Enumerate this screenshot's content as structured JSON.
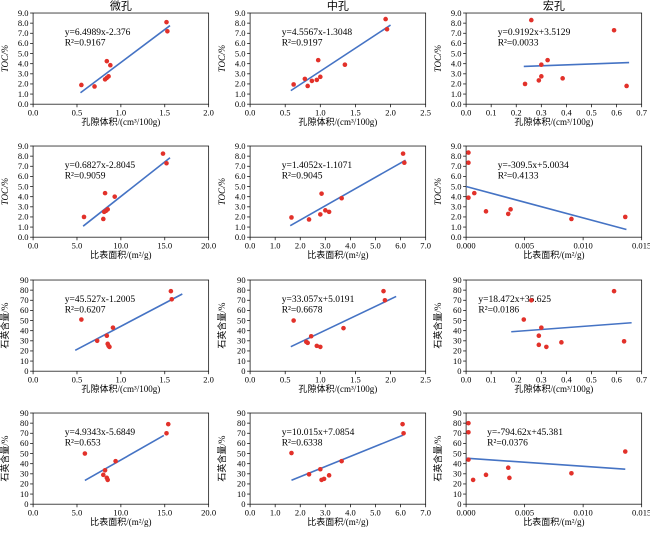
{
  "figure_title": "",
  "colors": {
    "point": "#e2312a",
    "trendline": "#4573c4",
    "axis": "#1a1a1a",
    "text": "#000000"
  },
  "column_titles": [
    "微孔",
    "中孔",
    "宏孔"
  ],
  "chart_data": [
    {
      "type": "scatter",
      "title": "微孔",
      "xlabel": "孔隙体积/(cm³/100g)",
      "ylabel": "TOC/%",
      "ylabel_italic": true,
      "xlim": [
        0,
        2.0
      ],
      "ylim": [
        0,
        9.0
      ],
      "xticks": [
        0,
        0.5,
        1.0,
        1.5,
        2.0
      ],
      "xtick_labels": [
        "0.0",
        "0.5",
        "1.0",
        "1.5",
        "2.0"
      ],
      "yticks": [
        0,
        1,
        2,
        3,
        4,
        5,
        6,
        7,
        8,
        9
      ],
      "ytick_labels": [
        "0.0",
        "1.0",
        "2.0",
        "3.0",
        "4.0",
        "5.0",
        "6.0",
        "7.0",
        "8.0",
        "9.0"
      ],
      "equation": "y=6.4989x-2.376",
      "r2": "R²=0.9167",
      "fit": {
        "slope": 6.4989,
        "intercept": -2.376,
        "x_range": [
          0.54,
          1.56
        ]
      },
      "eq_x": 0.18,
      "points": [
        [
          0.55,
          1.9
        ],
        [
          0.7,
          1.75
        ],
        [
          0.82,
          2.45
        ],
        [
          0.84,
          2.6
        ],
        [
          0.86,
          2.75
        ],
        [
          0.84,
          4.25
        ],
        [
          0.88,
          3.85
        ],
        [
          1.52,
          8.1
        ],
        [
          1.53,
          7.2
        ]
      ]
    },
    {
      "type": "scatter",
      "title": "中孔",
      "xlabel": "孔隙体积/(cm³/100g)",
      "ylabel": "TOC/%",
      "ylabel_italic": true,
      "xlim": [
        0,
        2.5
      ],
      "ylim": [
        0,
        9.0
      ],
      "xticks": [
        0,
        0.5,
        1.0,
        1.5,
        2.0,
        2.5
      ],
      "xtick_labels": [
        "0.0",
        "0.5",
        "1.0",
        "1.5",
        "2.0",
        "2.5"
      ],
      "yticks": [
        0,
        1,
        2,
        3,
        4,
        5,
        6,
        7,
        8,
        9
      ],
      "ytick_labels": [
        "0.0",
        "1.0",
        "2.0",
        "3.0",
        "4.0",
        "5.0",
        "6.0",
        "7.0",
        "8.0",
        "9.0"
      ],
      "equation": "y=4.5567x-1.3048",
      "r2": "R²=0.9197",
      "fit": {
        "slope": 4.5567,
        "intercept": -1.3048,
        "x_range": [
          0.58,
          2.0
        ]
      },
      "eq_x": 0.18,
      "points": [
        [
          0.62,
          1.95
        ],
        [
          0.78,
          2.5
        ],
        [
          0.82,
          1.8
        ],
        [
          0.88,
          2.3
        ],
        [
          0.95,
          2.4
        ],
        [
          1.0,
          2.7
        ],
        [
          0.97,
          4.35
        ],
        [
          1.35,
          3.9
        ],
        [
          1.93,
          8.4
        ],
        [
          1.95,
          7.4
        ]
      ]
    },
    {
      "type": "scatter",
      "title": "宏孔",
      "xlabel": "孔隙体积/(cm³/100g)",
      "ylabel": "TOC/%",
      "ylabel_italic": true,
      "xlim": [
        0,
        0.7
      ],
      "ylim": [
        0,
        9.0
      ],
      "xticks": [
        0,
        0.1,
        0.2,
        0.3,
        0.4,
        0.5,
        0.6,
        0.7
      ],
      "xtick_labels": [
        "0.0",
        "0.1",
        "0.2",
        "0.3",
        "0.4",
        "0.5",
        "0.6",
        "0.7"
      ],
      "yticks": [
        0,
        1,
        2,
        3,
        4,
        5,
        6,
        7,
        8,
        9
      ],
      "ytick_labels": [
        "0.0",
        "1.0",
        "2.0",
        "3.0",
        "4.0",
        "5.0",
        "6.0",
        "7.0",
        "8.0",
        "9.0"
      ],
      "equation": "y=0.9192x+3.5129",
      "r2": "R²=0.0033",
      "fit": {
        "slope": 0.9192,
        "intercept": 3.5129,
        "x_range": [
          0.23,
          0.65
        ]
      },
      "eq_x": 0.18,
      "points": [
        [
          0.235,
          2.0
        ],
        [
          0.26,
          8.3
        ],
        [
          0.29,
          2.35
        ],
        [
          0.3,
          2.75
        ],
        [
          0.3,
          3.9
        ],
        [
          0.325,
          4.35
        ],
        [
          0.385,
          2.55
        ],
        [
          0.59,
          7.3
        ],
        [
          0.64,
          1.8
        ]
      ]
    },
    {
      "type": "scatter",
      "title": "",
      "xlabel": "比表面积/(m²/g)",
      "ylabel": "TOC/%",
      "ylabel_italic": true,
      "xlim": [
        0,
        20.0
      ],
      "ylim": [
        0,
        9.0
      ],
      "xticks": [
        0,
        5,
        10,
        15,
        20
      ],
      "xtick_labels": [
        "0.0",
        "5.0",
        "10.0",
        "15.0",
        "20.0"
      ],
      "yticks": [
        0,
        1,
        2,
        3,
        4,
        5,
        6,
        7,
        8,
        9
      ],
      "ytick_labels": [
        "0.0",
        "1.0",
        "2.0",
        "3.0",
        "4.0",
        "5.0",
        "6.0",
        "7.0",
        "8.0",
        "9.0"
      ],
      "equation": "y=0.6827x-2.8045",
      "r2": "R²=0.9059",
      "fit": {
        "slope": 0.6827,
        "intercept": -2.8045,
        "x_range": [
          5.7,
          15.6
        ]
      },
      "eq_x": 0.18,
      "points": [
        [
          5.8,
          2.0
        ],
        [
          8.0,
          1.8
        ],
        [
          8.1,
          2.5
        ],
        [
          8.3,
          2.6
        ],
        [
          8.5,
          2.75
        ],
        [
          8.2,
          4.35
        ],
        [
          9.3,
          4.0
        ],
        [
          14.8,
          8.25
        ],
        [
          15.2,
          7.3
        ]
      ]
    },
    {
      "type": "scatter",
      "title": "",
      "xlabel": "比表面积/(m²/g)",
      "ylabel": "TOC/%",
      "ylabel_italic": true,
      "xlim": [
        0,
        7.0
      ],
      "ylim": [
        0,
        9.0
      ],
      "xticks": [
        0,
        1,
        2,
        3,
        4,
        5,
        6,
        7
      ],
      "xtick_labels": [
        "0.0",
        "1.0",
        "2.0",
        "3.0",
        "4.0",
        "5.0",
        "6.0",
        "7.0"
      ],
      "yticks": [
        0,
        1,
        2,
        3,
        4,
        5,
        6,
        7,
        8,
        9
      ],
      "ytick_labels": [
        "0.0",
        "1.0",
        "2.0",
        "3.0",
        "4.0",
        "5.0",
        "6.0",
        "7.0",
        "8.0",
        "9.0"
      ],
      "equation": "y=1.4052x-1.1071",
      "r2": "R²=0.9045",
      "fit": {
        "slope": 1.4052,
        "intercept": -1.1071,
        "x_range": [
          1.6,
          6.2
        ]
      },
      "eq_x": 0.18,
      "points": [
        [
          1.65,
          1.95
        ],
        [
          2.35,
          1.75
        ],
        [
          2.8,
          2.25
        ],
        [
          2.85,
          4.3
        ],
        [
          3.0,
          2.65
        ],
        [
          3.15,
          2.5
        ],
        [
          3.65,
          3.85
        ],
        [
          6.1,
          8.25
        ],
        [
          6.15,
          7.35
        ]
      ]
    },
    {
      "type": "scatter",
      "title": "",
      "xlabel": "比表面积/(m²/g)",
      "ylabel": "TOC/%",
      "ylabel_italic": true,
      "xlim": [
        0,
        0.015
      ],
      "ylim": [
        0,
        9.0
      ],
      "xticks": [
        0,
        0.005,
        0.01,
        0.015
      ],
      "xtick_labels": [
        "0.000",
        "0.005",
        "0.010",
        "0.015"
      ],
      "yticks": [
        0,
        1,
        2,
        3,
        4,
        5,
        6,
        7,
        8,
        9
      ],
      "ytick_labels": [
        "0.0",
        "1.0",
        "2.0",
        "3.0",
        "4.0",
        "5.0",
        "6.0",
        "7.0",
        "8.0",
        "9.0"
      ],
      "equation": "y=-309.5x+5.0034",
      "r2": "R²=0.4133",
      "fit": {
        "slope": -309.5,
        "intercept": 5.0034,
        "x_range": [
          0,
          0.0137
        ]
      },
      "eq_x": 0.18,
      "points": [
        [
          0.0002,
          8.35
        ],
        [
          0.0002,
          7.35
        ],
        [
          0.0002,
          3.9
        ],
        [
          0.0007,
          4.35
        ],
        [
          0.0017,
          2.55
        ],
        [
          0.0036,
          2.3
        ],
        [
          0.0038,
          2.75
        ],
        [
          0.009,
          1.8
        ],
        [
          0.0136,
          2.0
        ]
      ]
    },
    {
      "type": "scatter",
      "title": "",
      "xlabel": "孔隙体积/(cm³/100g)",
      "ylabel": "石英含量/%",
      "ylabel_italic": false,
      "xlim": [
        0,
        2.0
      ],
      "ylim": [
        0,
        90
      ],
      "xticks": [
        0,
        0.5,
        1.0,
        1.5,
        2.0
      ],
      "xtick_labels": [
        "0.0",
        "0.5",
        "1.0",
        "1.5",
        "2.0"
      ],
      "yticks": [
        0,
        10,
        20,
        30,
        40,
        50,
        60,
        70,
        80,
        90
      ],
      "ytick_labels": [
        "0",
        "10",
        "20",
        "30",
        "40",
        "50",
        "60",
        "70",
        "80",
        "90"
      ],
      "equation": "y=45.527x-1.2005",
      "r2": "R²=0.6207",
      "fit": {
        "slope": 45.527,
        "intercept": -1.2005,
        "x_range": [
          0.48,
          1.7
        ]
      },
      "eq_x": 0.18,
      "points": [
        [
          0.55,
          51
        ],
        [
          0.73,
          30
        ],
        [
          0.84,
          35
        ],
        [
          0.85,
          27
        ],
        [
          0.86,
          25
        ],
        [
          0.87,
          24
        ],
        [
          0.91,
          43
        ],
        [
          1.57,
          79
        ],
        [
          1.58,
          71
        ]
      ]
    },
    {
      "type": "scatter",
      "title": "",
      "xlabel": "孔隙体积/(cm³/100g)",
      "ylabel": "石英含量/%",
      "ylabel_italic": false,
      "xlim": [
        0,
        2.5
      ],
      "ylim": [
        0,
        90
      ],
      "xticks": [
        0,
        0.5,
        1.0,
        1.5,
        2.0,
        2.5
      ],
      "xtick_labels": [
        "0.0",
        "0.5",
        "1.0",
        "1.5",
        "2.0",
        "2.5"
      ],
      "yticks": [
        0,
        10,
        20,
        30,
        40,
        50,
        60,
        70,
        80,
        90
      ],
      "ytick_labels": [
        "0",
        "10",
        "20",
        "30",
        "40",
        "50",
        "60",
        "70",
        "80",
        "90"
      ],
      "equation": "y=33.057x+5.0191",
      "r2": "R²=0.6678",
      "fit": {
        "slope": 33.057,
        "intercept": 5.0191,
        "x_range": [
          0.58,
          2.08
        ]
      },
      "eq_x": 0.18,
      "points": [
        [
          0.62,
          50
        ],
        [
          0.8,
          29
        ],
        [
          0.82,
          28
        ],
        [
          0.87,
          34.5
        ],
        [
          0.95,
          25
        ],
        [
          1.0,
          24
        ],
        [
          1.33,
          42.5
        ],
        [
          1.9,
          79
        ],
        [
          1.92,
          70
        ]
      ]
    },
    {
      "type": "scatter",
      "title": "",
      "xlabel": "孔隙体积/(cm³/100g)",
      "ylabel": "石英含量/%",
      "ylabel_italic": false,
      "xlim": [
        0,
        0.7
      ],
      "ylim": [
        0,
        90
      ],
      "xticks": [
        0,
        0.1,
        0.2,
        0.3,
        0.4,
        0.5,
        0.6,
        0.7
      ],
      "xtick_labels": [
        "0.0",
        "0.1",
        "0.2",
        "0.3",
        "0.4",
        "0.5",
        "0.6",
        "0.7"
      ],
      "yticks": [
        0,
        10,
        20,
        30,
        40,
        50,
        60,
        70,
        80,
        90
      ],
      "ytick_labels": [
        "0",
        "10",
        "20",
        "30",
        "40",
        "50",
        "60",
        "70",
        "80",
        "90"
      ],
      "equation": "y=18.472x+35.625",
      "r2": "R²=0.0186",
      "fit": {
        "slope": 18.472,
        "intercept": 35.625,
        "x_range": [
          0.18,
          0.66
        ]
      },
      "eq_x": 0.07,
      "points": [
        [
          0.23,
          51
        ],
        [
          0.26,
          70
        ],
        [
          0.29,
          35
        ],
        [
          0.29,
          26
        ],
        [
          0.3,
          43
        ],
        [
          0.32,
          24
        ],
        [
          0.38,
          28.5
        ],
        [
          0.59,
          79
        ],
        [
          0.63,
          29.5
        ]
      ]
    },
    {
      "type": "scatter",
      "title": "",
      "xlabel": "比表面积/(m²/g)",
      "ylabel": "石英含量/%",
      "ylabel_italic": false,
      "xlim": [
        0,
        20.0
      ],
      "ylim": [
        0,
        90
      ],
      "xticks": [
        0,
        5,
        10,
        15,
        20
      ],
      "xtick_labels": [
        "0.0",
        "5.0",
        "10.0",
        "15.0",
        "20.0"
      ],
      "yticks": [
        0,
        10,
        20,
        30,
        40,
        50,
        60,
        70,
        80,
        90
      ],
      "ytick_labels": [
        "0",
        "10",
        "20",
        "30",
        "40",
        "50",
        "60",
        "70",
        "80",
        "90"
      ],
      "equation": "y=4.9343x-5.6849",
      "r2": "R²=0.653",
      "fit": {
        "slope": 4.9343,
        "intercept": -5.6849,
        "x_range": [
          5.9,
          14.9
        ]
      },
      "eq_x": 0.18,
      "points": [
        [
          5.9,
          50
        ],
        [
          8.0,
          29
        ],
        [
          8.2,
          33.5
        ],
        [
          8.4,
          26
        ],
        [
          8.5,
          24
        ],
        [
          9.4,
          42.5
        ],
        [
          15.2,
          70
        ],
        [
          15.4,
          79
        ]
      ]
    },
    {
      "type": "scatter",
      "title": "",
      "xlabel": "比表面积/(m²/g)",
      "ylabel": "石英含量/%",
      "ylabel_italic": false,
      "xlim": [
        0,
        7.0
      ],
      "ylim": [
        0,
        90
      ],
      "xticks": [
        0,
        1,
        2,
        3,
        4,
        5,
        6,
        7
      ],
      "xtick_labels": [
        "0.0",
        "1.0",
        "2.0",
        "3.0",
        "4.0",
        "5.0",
        "6.0",
        "7.0"
      ],
      "yticks": [
        0,
        10,
        20,
        30,
        40,
        50,
        60,
        70,
        80,
        90
      ],
      "ytick_labels": [
        "0",
        "10",
        "20",
        "30",
        "40",
        "50",
        "60",
        "70",
        "80",
        "90"
      ],
      "equation": "y=10.015x+7.0854",
      "r2": "R²=0.6338",
      "fit": {
        "slope": 10.015,
        "intercept": 7.0854,
        "x_range": [
          1.65,
          6.1
        ]
      },
      "eq_x": 0.18,
      "points": [
        [
          1.65,
          50.5
        ],
        [
          2.35,
          29.5
        ],
        [
          2.8,
          34.5
        ],
        [
          2.85,
          24
        ],
        [
          2.95,
          25
        ],
        [
          3.15,
          28.5
        ],
        [
          3.65,
          42.5
        ],
        [
          6.08,
          79
        ],
        [
          6.12,
          70
        ]
      ]
    },
    {
      "type": "scatter",
      "title": "",
      "xlabel": "比表面积/(m²/g)",
      "ylabel": "石英含量/%",
      "ylabel_italic": false,
      "xlim": [
        0,
        0.015
      ],
      "ylim": [
        0,
        90
      ],
      "xticks": [
        0,
        0.005,
        0.01,
        0.015
      ],
      "xtick_labels": [
        "0.000",
        "0.005",
        "0.010",
        "0.015"
      ],
      "yticks": [
        0,
        10,
        20,
        30,
        40,
        50,
        60,
        70,
        80,
        90
      ],
      "ytick_labels": [
        "0",
        "10",
        "20",
        "30",
        "40",
        "50",
        "60",
        "70",
        "80",
        "90"
      ],
      "equation": "y=-794.62x+45.381",
      "r2": "R²=0.0376",
      "fit": {
        "slope": -794.62,
        "intercept": 45.381,
        "x_range": [
          0,
          0.0136
        ]
      },
      "eq_x": 0.12,
      "points": [
        [
          0.0002,
          80
        ],
        [
          0.0002,
          71
        ],
        [
          0.0002,
          44
        ],
        [
          0.0006,
          24
        ],
        [
          0.0017,
          29
        ],
        [
          0.0036,
          36
        ],
        [
          0.0037,
          26
        ],
        [
          0.009,
          30.5
        ],
        [
          0.0136,
          52
        ]
      ]
    }
  ]
}
